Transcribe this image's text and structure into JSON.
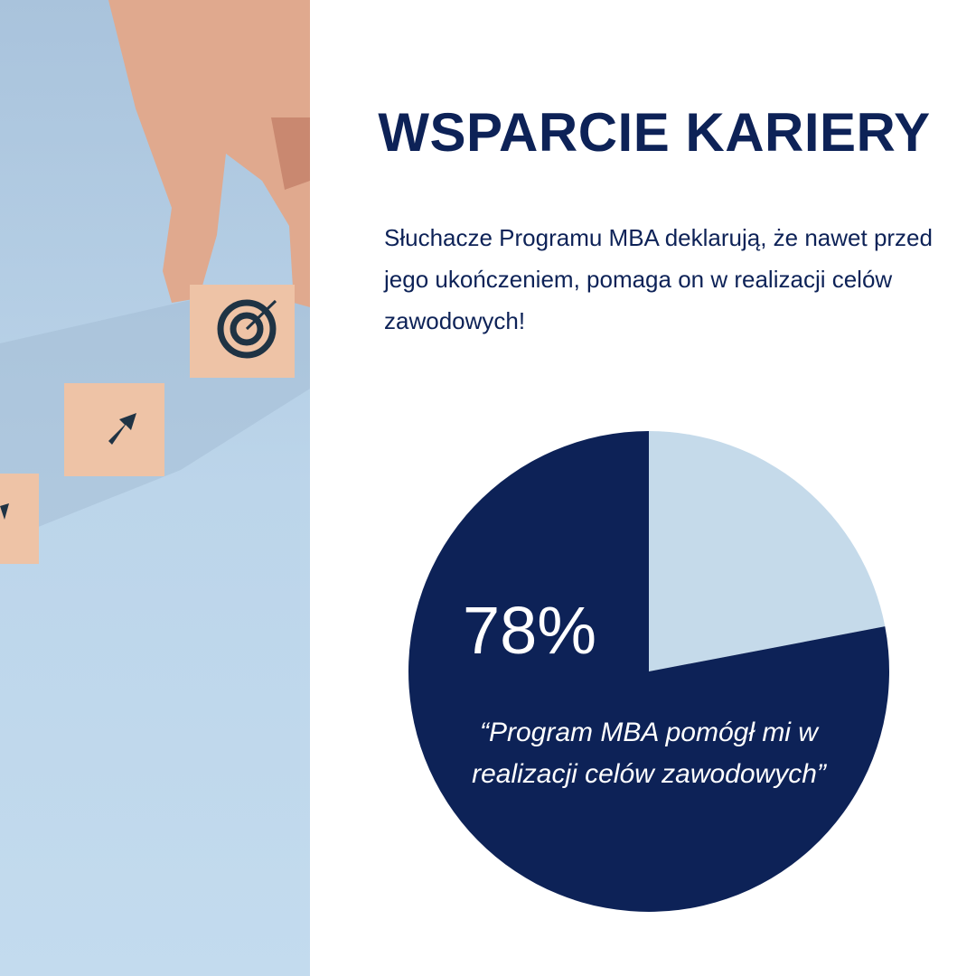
{
  "title": "WSPARCIE KARIERY",
  "description": "Słuchacze Programu MBA deklarują, że nawet przed jego ukończeniem, pomaga on w realizacji celów zawodowych!",
  "colors": {
    "navy": "#0d2257",
    "light_blue": "#c5daea",
    "photo_background": "#bcd5ea"
  },
  "photo": {
    "icons": [
      "target-icon",
      "arrow-up-right-icon"
    ]
  },
  "chart_data": {
    "type": "pie",
    "slices": [
      {
        "label": "“Program MBA pomógł mi w realizacji celów zawodowych”",
        "value": 78,
        "display": "78%",
        "color": "#0d2257"
      },
      {
        "label": "",
        "value": 22,
        "color": "#c5daea"
      }
    ]
  }
}
